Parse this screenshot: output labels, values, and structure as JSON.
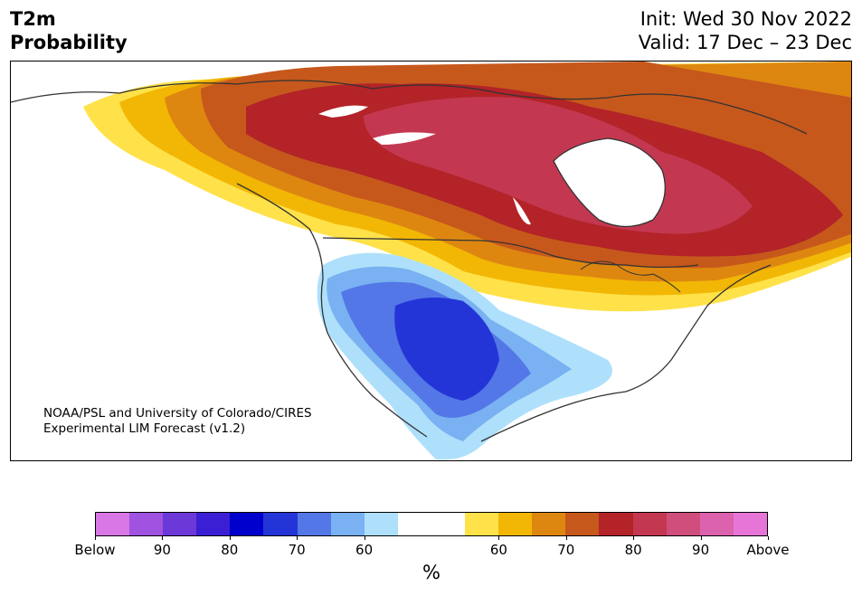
{
  "header": {
    "title_line1": "T2m",
    "title_line2": "Probability",
    "init": "Init: Wed 30 Nov 2022",
    "valid": "Valid: 17 Dec – 23 Dec"
  },
  "credit": {
    "line1": "NOAA/PSL and University of Colorado/CIRES",
    "line2": "Experimental LIM Forecast (v1.2)"
  },
  "colorbar": {
    "unit": "%",
    "colors": [
      "#d977e6",
      "#a052e0",
      "#6d38d8",
      "#3a1fd4",
      "#0000cc",
      "#2435d8",
      "#5377e6",
      "#79b1f2",
      "#aee0fc",
      "#ffffff",
      "#ffffff",
      "#ffe24a",
      "#f2b705",
      "#de8710",
      "#c6581c",
      "#b32328",
      "#c33850",
      "#cf4e7c",
      "#dc62ad",
      "#e775d8"
    ],
    "ticks": [
      "Below",
      "90",
      "80",
      "70",
      "60",
      "60",
      "70",
      "80",
      "90",
      "Above"
    ]
  },
  "colors": {
    "land_line": "#333333",
    "warm_max": "#c33850",
    "cold_max": "#2435d8"
  }
}
